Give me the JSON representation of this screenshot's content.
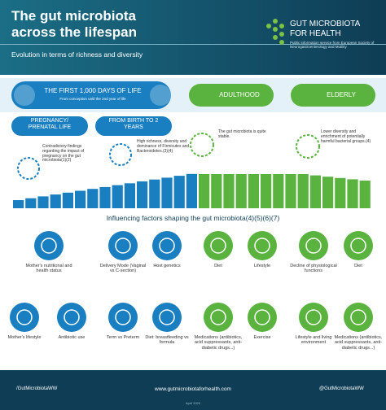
{
  "header": {
    "title": "The gut microbiota across the lifespan",
    "subtitle": "Evolution in terms of richness and diversity",
    "logo_name": "GUT MICROBIOTA FOR HEALTH",
    "logo_tagline": "Public information service from European Society of Neurogastroenterology and Motility"
  },
  "stages": {
    "first_1000": "THE FIRST 1,000 DAYS OF LIFE",
    "first_1000_sub": "From conception until the 2nd year of life",
    "adulthood": "ADULTHOOD",
    "elderly": "ELDERLY",
    "pregnancy": "PREGNANCY/ PRENATAL LIFE",
    "birth": "FROM BIRTH TO 2 YEARS"
  },
  "notes": [
    "Contradictory findings regarding the impact of pregnancy on the gut microbiota(1)(2)",
    "High richness, diversity and dominance of Firmicutes and Bacteroidetes.(3)(4)",
    "The gut microbiota is quite stable.",
    "Lower diversity and enrichment of potentially harmful bacterial groups.(4)"
  ],
  "factors": {
    "title": "Influencing factors shaping the gut microbiota(4)(5)(6)(7)",
    "items": [
      "Mother's nutritional and health status",
      "Delivery Mode (Vaginal vs C-section)",
      "Host genetics",
      "Diet",
      "Lifestyle",
      "Decline of physiological functions",
      "Diet",
      "Mother's lifestyle",
      "Antibiotic use",
      "Term vs Preterm",
      "Diet: breastfeeding vs formula",
      "Medications (antibiotics, acid suppressants, anti-diabetic drugs...)",
      "Exercise",
      "Lifestyle and living environment",
      "Medications (antibiotics, acid suppressants, anti-diabetic drugs...)"
    ]
  },
  "footer": {
    "facebook": "/GutMicrobiotaWW",
    "website": "www.gutmicrobiotaforhealth.com",
    "twitter": "@GutMicrobiotaWW",
    "date": "April 2020"
  }
}
